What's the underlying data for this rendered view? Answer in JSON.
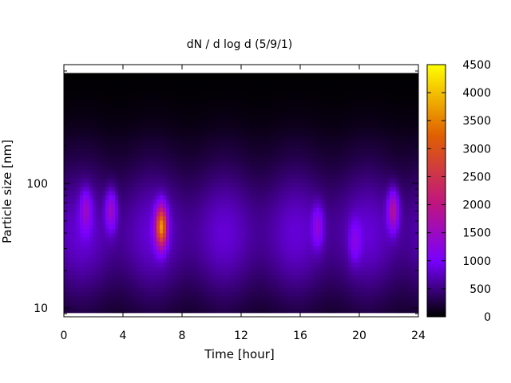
{
  "chart_data": {
    "type": "heatmap",
    "title": "dN / d log d (5/9/1)",
    "xlabel": "Time [hour]",
    "ylabel": "Particle size [nm]",
    "xlim": [
      0,
      24
    ],
    "ylim": [
      8.5,
      900
    ],
    "y_scale": "log",
    "x_ticks": [
      0,
      4,
      8,
      12,
      16,
      20,
      24
    ],
    "y_ticks": [
      10,
      100
    ],
    "colorbar": {
      "range": [
        0,
        4500
      ],
      "ticks": [
        0,
        500,
        1000,
        1500,
        2000,
        2500,
        3000,
        3500,
        4000,
        4500
      ],
      "colormap": "gnuplot",
      "colors": [
        "#000000",
        "#7800ff",
        "#c01580",
        "#e06000",
        "#ffff00"
      ]
    },
    "hotspots": [
      {
        "time": 6.6,
        "size": 45,
        "value": 3700
      },
      {
        "time": 22.3,
        "size": 60,
        "value": 2000
      },
      {
        "time": 3.2,
        "size": 60,
        "value": 1700
      },
      {
        "time": 17.2,
        "size": 45,
        "value": 1500
      },
      {
        "time": 1.5,
        "size": 60,
        "value": 1500
      },
      {
        "time": 19.7,
        "size": 35,
        "value": 1300
      }
    ],
    "texts": {
      "x_tick_labels": [
        "0",
        "4",
        "8",
        "12",
        "16",
        "20",
        "24"
      ],
      "y_tick_labels": [
        "10",
        "100"
      ],
      "colorbar_tick_labels": [
        "0",
        "500",
        "1000",
        "1500",
        "2000",
        "2500",
        "3000",
        "3500",
        "4000",
        "4500"
      ]
    }
  }
}
